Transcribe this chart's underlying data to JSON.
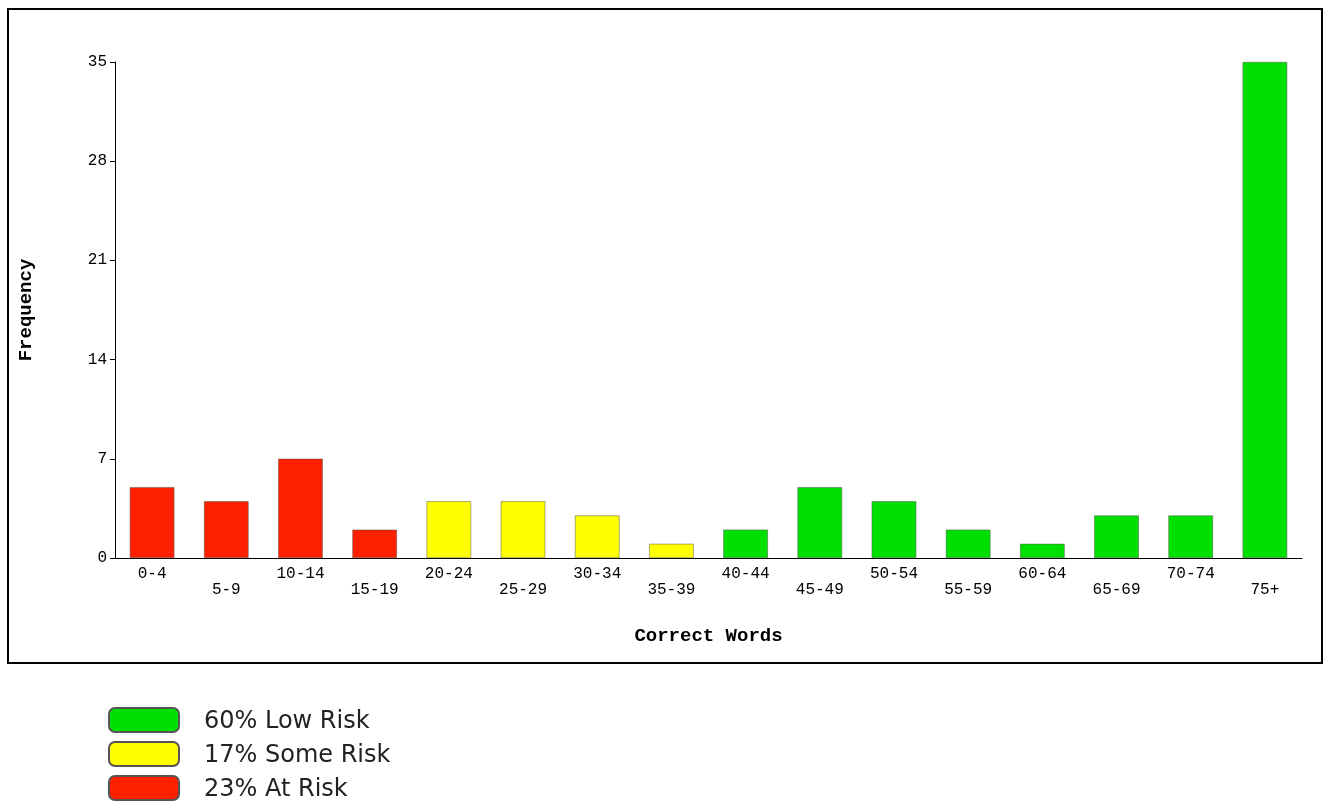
{
  "chart_data": {
    "type": "bar",
    "xlabel": "Correct Words",
    "ylabel": "Frequency",
    "categories": [
      "0-4",
      "5-9",
      "10-14",
      "15-19",
      "20-24",
      "25-29",
      "30-34",
      "35-39",
      "40-44",
      "45-49",
      "50-54",
      "55-59",
      "60-64",
      "65-69",
      "70-74",
      "75+"
    ],
    "stacked": true,
    "ylim": [
      0,
      35
    ],
    "yticks": [
      0,
      7,
      14,
      21,
      28,
      35
    ],
    "grid": false,
    "legend": "bottom left",
    "series": [
      {
        "name": "60% Low Risk",
        "color": "#00e000",
        "values": [
          null,
          null,
          null,
          null,
          null,
          null,
          null,
          null,
          2,
          5,
          4,
          2,
          1,
          3,
          3,
          35
        ]
      },
      {
        "name": "17% Some Risk",
        "color": "#ffff00",
        "values": [
          null,
          null,
          null,
          null,
          4,
          4,
          3,
          1,
          null,
          null,
          null,
          null,
          null,
          null,
          null,
          null
        ]
      },
      {
        "name": "23% At Risk",
        "color": "#ff2000",
        "values": [
          5,
          4,
          7,
          2,
          null,
          null,
          null,
          null,
          null,
          null,
          null,
          null,
          null,
          null,
          null,
          null
        ]
      }
    ]
  }
}
